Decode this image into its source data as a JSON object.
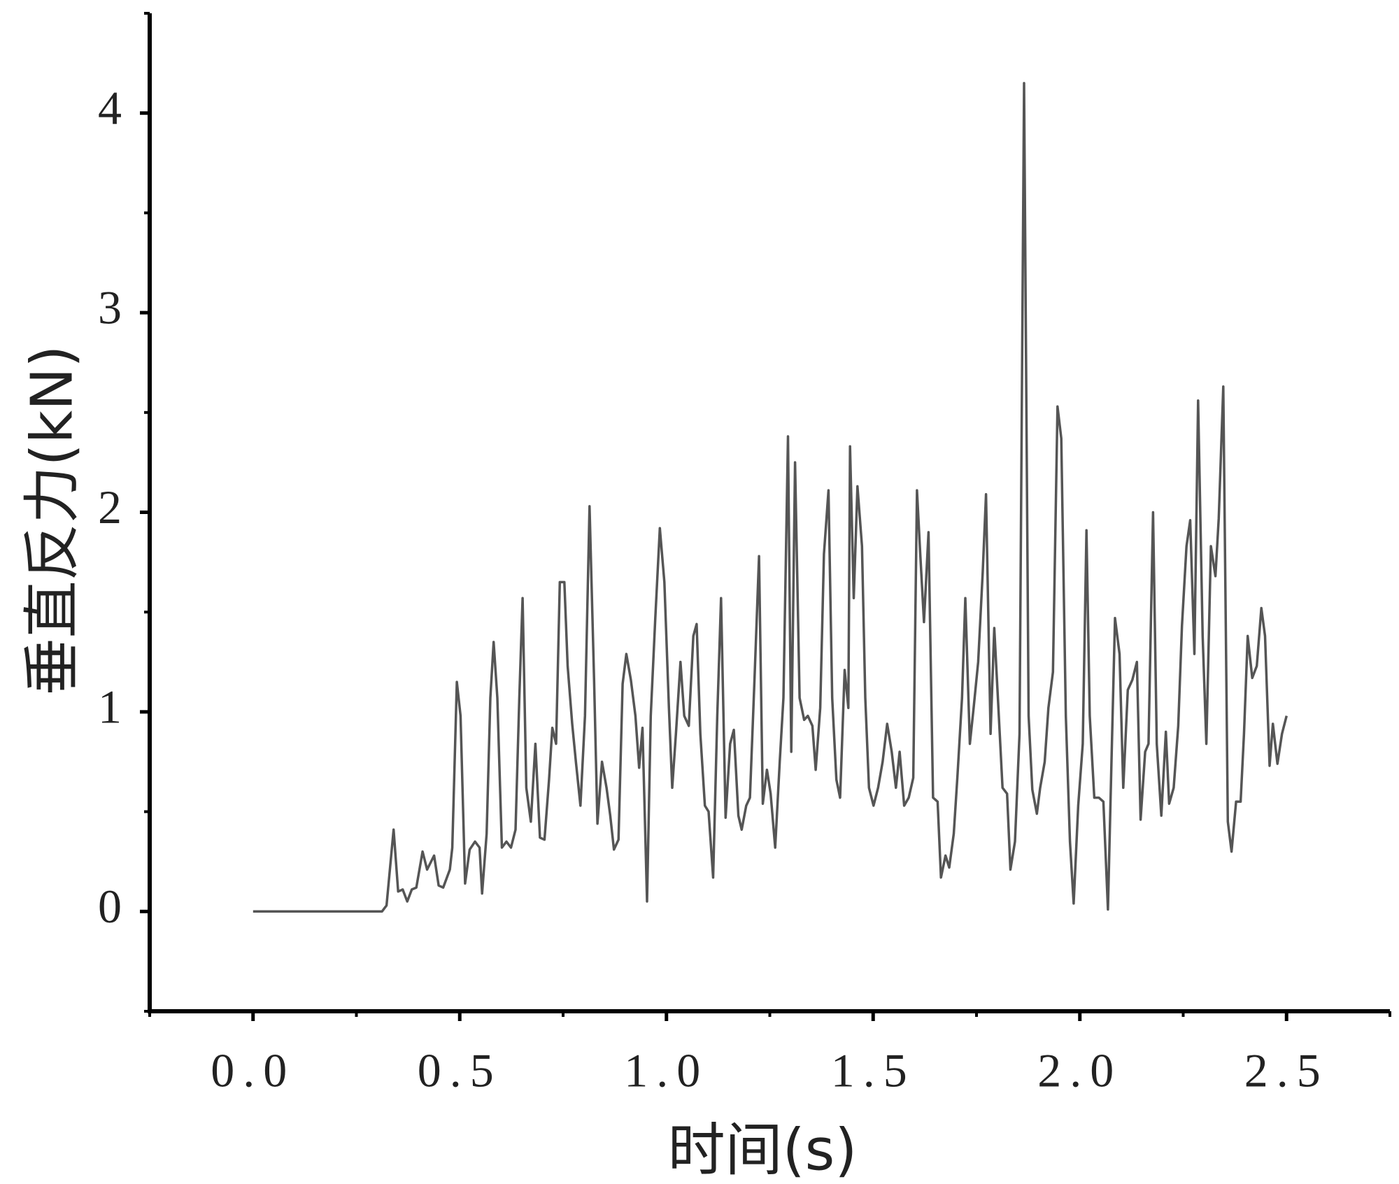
{
  "chart_data": {
    "type": "line",
    "x_label": "时间(s)",
    "y_label": "垂直反力(kN)",
    "xlim": [
      -0.25,
      2.75
    ],
    "ylim": [
      -0.5,
      4.5
    ],
    "xticks": [
      {
        "value": 0,
        "label": "0.0"
      },
      0.5,
      {
        "value": 1,
        "label": "1.0"
      },
      1.5,
      {
        "value": 2,
        "label": "2.0"
      },
      2.5
    ],
    "yticks": [
      0,
      1,
      2,
      3,
      4
    ],
    "xminorticks": [
      -0.25,
      0.25,
      0.75,
      1.25,
      1.75,
      2.25,
      2.75
    ],
    "yminorticks": [
      -0.5,
      0.5,
      1.5,
      2.5,
      3.5,
      4.5
    ],
    "grid": false,
    "series": [
      {
        "color": "#555555",
        "x": [
          0,
          0.312,
          0.323,
          0.34,
          0.351,
          0.362,
          0.373,
          0.384,
          0.395,
          0.41,
          0.421,
          0.438,
          0.449,
          0.46,
          0.476,
          0.482,
          0.493,
          0.502,
          0.513,
          0.524,
          0.537,
          0.548,
          0.554,
          0.565,
          0.574,
          0.582,
          0.591,
          0.602,
          0.613,
          0.624,
          0.635,
          0.644,
          0.652,
          0.661,
          0.672,
          0.683,
          0.694,
          0.705,
          0.716,
          0.724,
          0.733,
          0.742,
          0.753,
          0.761,
          0.772,
          0.781,
          0.792,
          0.803,
          0.814,
          0.825,
          0.833,
          0.844,
          0.855,
          0.864,
          0.873,
          0.884,
          0.894,
          0.903,
          0.914,
          0.925,
          0.934,
          0.942,
          0.953,
          0.962,
          0.973,
          0.984,
          0.995,
          1.006,
          1.014,
          1.023,
          1.034,
          1.043,
          1.054,
          1.065,
          1.073,
          1.082,
          1.093,
          1.102,
          1.113,
          1.123,
          1.132,
          1.143,
          1.154,
          1.163,
          1.174,
          1.182,
          1.193,
          1.202,
          1.213,
          1.224,
          1.233,
          1.243,
          1.252,
          1.263,
          1.274,
          1.283,
          1.294,
          1.302,
          1.311,
          1.322,
          1.333,
          1.342,
          1.353,
          1.361,
          1.372,
          1.381,
          1.392,
          1.401,
          1.411,
          1.42,
          1.431,
          1.44,
          1.444,
          1.453,
          1.462,
          1.473,
          1.481,
          1.49,
          1.501,
          1.512,
          1.523,
          1.534,
          1.545,
          1.555,
          1.564,
          1.575,
          1.586,
          1.597,
          1.606,
          1.614,
          1.623,
          1.634,
          1.645,
          1.656,
          1.664,
          1.675,
          1.684,
          1.695,
          1.704,
          1.715,
          1.723,
          1.734,
          1.743,
          1.754,
          1.765,
          1.773,
          1.784,
          1.793,
          1.804,
          1.813,
          1.824,
          1.832,
          1.843,
          1.854,
          1.865,
          1.876,
          1.885,
          1.896,
          1.904,
          1.915,
          1.924,
          1.935,
          1.946,
          1.955,
          1.966,
          1.976,
          1.985,
          1.996,
          2.007,
          2.016,
          2.024,
          2.035,
          2.046,
          2.057,
          2.068,
          2.077,
          2.085,
          2.096,
          2.105,
          2.116,
          2.127,
          2.138,
          2.147,
          2.158,
          2.166,
          2.177,
          2.186,
          2.197,
          2.208,
          2.216,
          2.227,
          2.238,
          2.247,
          2.258,
          2.267,
          2.277,
          2.286,
          2.297,
          2.306,
          2.317,
          2.328,
          2.336,
          2.347,
          2.358,
          2.367,
          2.378,
          2.389,
          2.397,
          2.406,
          2.417,
          2.428,
          2.439,
          2.448,
          2.459,
          2.467,
          2.478,
          2.489,
          2.5
        ],
        "values": [
          0,
          0,
          0.03,
          0.41,
          0.1,
          0.11,
          0.05,
          0.11,
          0.12,
          0.3,
          0.21,
          0.28,
          0.13,
          0.12,
          0.21,
          0.32,
          1.15,
          0.98,
          0.14,
          0.31,
          0.35,
          0.32,
          0.09,
          0.39,
          1.07,
          1.35,
          1.07,
          0.32,
          0.35,
          0.32,
          0.41,
          1.07,
          1.57,
          0.62,
          0.45,
          0.84,
          0.37,
          0.36,
          0.66,
          0.92,
          0.84,
          1.65,
          1.65,
          1.23,
          0.94,
          0.75,
          0.53,
          0.98,
          2.03,
          1.16,
          0.44,
          0.75,
          0.62,
          0.48,
          0.31,
          0.36,
          1.14,
          1.29,
          1.16,
          0.98,
          0.72,
          0.92,
          0.05,
          0.98,
          1.47,
          1.92,
          1.65,
          1.02,
          0.62,
          0.89,
          1.25,
          0.98,
          0.93,
          1.38,
          1.44,
          0.89,
          0.53,
          0.5,
          0.17,
          0.98,
          1.57,
          0.47,
          0.84,
          0.91,
          0.48,
          0.41,
          0.53,
          0.57,
          1.16,
          1.78,
          0.54,
          0.71,
          0.59,
          0.32,
          0.75,
          1.07,
          2.38,
          0.8,
          2.25,
          1.07,
          0.96,
          0.98,
          0.93,
          0.71,
          1.02,
          1.79,
          2.11,
          1.07,
          0.66,
          0.57,
          1.21,
          1.02,
          2.33,
          1.57,
          2.13,
          1.83,
          1.07,
          0.62,
          0.53,
          0.62,
          0.75,
          0.94,
          0.8,
          0.62,
          0.8,
          0.53,
          0.57,
          0.67,
          2.11,
          1.79,
          1.45,
          1.9,
          0.57,
          0.55,
          0.17,
          0.28,
          0.22,
          0.39,
          0.68,
          1.07,
          1.57,
          0.84,
          1.02,
          1.25,
          1.7,
          2.09,
          0.89,
          1.42,
          0.98,
          0.62,
          0.59,
          0.21,
          0.35,
          0.89,
          4.15,
          0.98,
          0.61,
          0.49,
          0.62,
          0.75,
          1.02,
          1.2,
          2.53,
          2.37,
          0.98,
          0.35,
          0.04,
          0.53,
          0.84,
          1.91,
          0.98,
          0.57,
          0.57,
          0.55,
          0.01,
          0.8,
          1.47,
          1.29,
          0.62,
          1.11,
          1.16,
          1.25,
          0.46,
          0.8,
          0.84,
          2,
          0.84,
          0.48,
          0.9,
          0.54,
          0.62,
          0.93,
          1.43,
          1.83,
          1.96,
          1.29,
          2.56,
          1.38,
          0.84,
          1.83,
          1.68,
          1.97,
          2.63,
          0.45,
          0.3,
          0.55,
          0.55,
          0.89,
          1.38,
          1.17,
          1.23,
          1.52,
          1.38,
          0.73,
          0.94,
          0.74,
          0.89,
          0.98
        ]
      }
    ]
  }
}
